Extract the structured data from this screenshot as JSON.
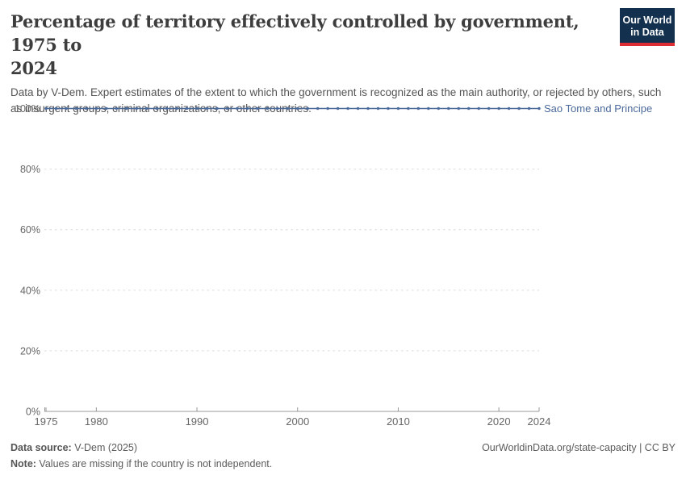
{
  "header": {
    "title_line1": "Percentage of territory effectively controlled by government, 1975 to",
    "title_line2": "2024",
    "subtitle": "Data by V-Dem. Expert estimates of the extent to which the government is recognized as the main authority, or rejected by others, such as insurgent groups, criminal organizations, or other countries.",
    "logo": {
      "line1": "Our World",
      "line2": "in Data"
    }
  },
  "chart_data": {
    "type": "line",
    "title": "Percentage of territory effectively controlled by government, 1975 to 2024",
    "xlabel": "",
    "ylabel": "",
    "xlim": [
      1975,
      2024
    ],
    "ylim": [
      0,
      100
    ],
    "grid": "dashed-horizontal",
    "legend_position": "end-of-line-label",
    "x": [
      1975,
      1976,
      1977,
      1978,
      1979,
      1980,
      1981,
      1982,
      1983,
      1984,
      1985,
      1986,
      1987,
      1988,
      1989,
      1990,
      1991,
      1992,
      1993,
      1994,
      1995,
      1996,
      1997,
      1998,
      1999,
      2000,
      2001,
      2002,
      2003,
      2004,
      2005,
      2006,
      2007,
      2008,
      2009,
      2010,
      2011,
      2012,
      2013,
      2014,
      2015,
      2016,
      2017,
      2018,
      2019,
      2020,
      2021,
      2022,
      2023,
      2024
    ],
    "series": [
      {
        "name": "Sao Tome and Principe",
        "values": [
          100,
          100,
          100,
          100,
          100,
          100,
          100,
          100,
          100,
          100,
          100,
          100,
          100,
          100,
          100,
          100,
          100,
          100,
          100,
          100,
          100,
          100,
          100,
          100,
          100,
          100,
          100,
          100,
          100,
          100,
          100,
          100,
          100,
          100,
          100,
          100,
          100,
          100,
          100,
          100,
          100,
          100,
          100,
          100,
          100,
          100,
          100,
          100,
          100,
          100
        ],
        "color": "#4c6a9c"
      }
    ],
    "yticks": [
      {
        "value": 0,
        "label": "0%"
      },
      {
        "value": 20,
        "label": "20%"
      },
      {
        "value": 40,
        "label": "40%"
      },
      {
        "value": 60,
        "label": "60%"
      },
      {
        "value": 80,
        "label": "80%"
      },
      {
        "value": 100,
        "label": "100%"
      }
    ],
    "xticks": [
      {
        "value": 1975,
        "label": "1975"
      },
      {
        "value": 1980,
        "label": "1980"
      },
      {
        "value": 1990,
        "label": "1990"
      },
      {
        "value": 2000,
        "label": "2000"
      },
      {
        "value": 2010,
        "label": "2010"
      },
      {
        "value": 2020,
        "label": "2020"
      },
      {
        "value": 2024,
        "label": "2024"
      }
    ]
  },
  "colors": {
    "line": "#4c6a9c",
    "entity_label": "#4c6a9c",
    "grid": "#dcdcdc",
    "axis": "#999999",
    "tick_text": "#666666",
    "logo_bg": "#14304f",
    "logo_stripe": "#dc2e32"
  },
  "footer": {
    "data_source_label": "Data source:",
    "data_source_value": " V-Dem (2025)",
    "link": "OurWorldinData.org/state-capacity | CC BY",
    "note_label": "Note:",
    "note_value": " Values are missing if the country is not independent."
  }
}
